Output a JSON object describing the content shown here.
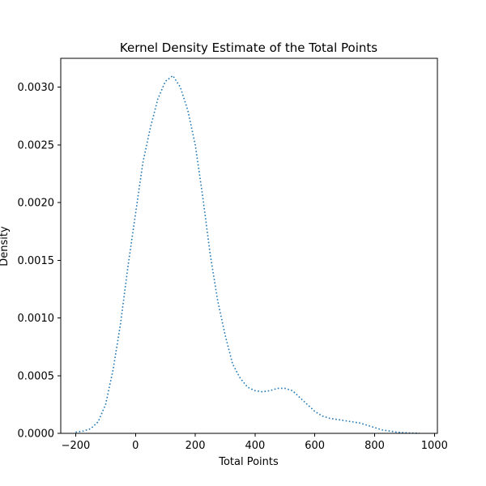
{
  "chart_data": {
    "type": "line",
    "title": "Kernel Density Estimate of the Total Points",
    "xlabel": "Total Points",
    "ylabel": "Density",
    "xlim": [
      -250,
      1010
    ],
    "ylim": [
      0,
      0.00325
    ],
    "xticks": [
      -200,
      0,
      200,
      400,
      600,
      800,
      1000
    ],
    "xtick_labels": [
      "−200",
      "0",
      "200",
      "400",
      "600",
      "800",
      "1000"
    ],
    "yticks": [
      0,
      0.0005,
      0.001,
      0.0015,
      0.002,
      0.0025,
      0.003
    ],
    "ytick_labels": [
      "0.0000",
      "0.0005",
      "0.0010",
      "0.0015",
      "0.0020",
      "0.0025",
      "0.0030"
    ],
    "grid": false,
    "line_style": "dotted",
    "color": "#1f77b4",
    "x": [
      -200,
      -175,
      -150,
      -125,
      -100,
      -75,
      -50,
      -25,
      0,
      25,
      50,
      75,
      100,
      125,
      150,
      175,
      200,
      225,
      250,
      275,
      300,
      325,
      350,
      375,
      400,
      425,
      450,
      475,
      500,
      525,
      550,
      575,
      600,
      625,
      650,
      675,
      700,
      725,
      750,
      775,
      800,
      825,
      850,
      875,
      900,
      925,
      950
    ],
    "y": [
      1e-05,
      2e-05,
      4e-05,
      0.0001,
      0.00025,
      0.00055,
      0.00095,
      0.00145,
      0.0019,
      0.00235,
      0.00265,
      0.0029,
      0.00305,
      0.0031,
      0.003,
      0.0028,
      0.0025,
      0.00205,
      0.00155,
      0.00115,
      0.00085,
      0.0006,
      0.00048,
      0.0004,
      0.00037,
      0.00036,
      0.00037,
      0.00039,
      0.00039,
      0.00037,
      0.00031,
      0.00025,
      0.00019,
      0.00015,
      0.00013,
      0.00012,
      0.00011,
      0.0001,
      9e-05,
      7e-05,
      5e-05,
      3e-05,
      2e-05,
      1e-05,
      5e-06,
      2e-06,
      1e-06
    ]
  }
}
